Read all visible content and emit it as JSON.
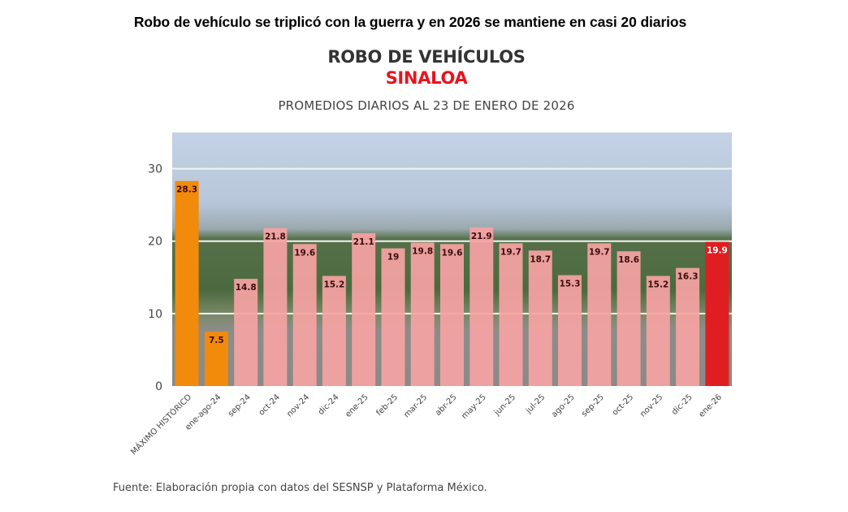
{
  "headline": "Robo de vehículo se triplicó con la guerra y en 2026 se mantiene en casi 20 diarios",
  "source": "Fuente: Elaboración propia con datos del SESNSP y Plataforma México.",
  "colors": {
    "historic": "#f28a0c",
    "monthly": "#f5a3a3",
    "current": "#e01e22",
    "title_red": "#e8141c",
    "title_gray": "#333333"
  },
  "chart_data": {
    "type": "bar",
    "title": "ROBO DE VEHÍCULOS",
    "subtitle_state": "SINALOA",
    "subtitle": "PROMEDIOS DIARIOS AL 23 DE ENERO DE 2026",
    "xlabel": "",
    "ylabel": "",
    "ylim": [
      0,
      35
    ],
    "yticks": [
      0,
      10,
      20,
      30
    ],
    "grid": true,
    "categories": [
      "MÁXIMO HISTÓRICO",
      "ene-ago-24",
      "sep-24",
      "oct-24",
      "nov-24",
      "dic-24",
      "ene-25",
      "feb-25",
      "mar-25",
      "abr-25",
      "may-25",
      "jun-25",
      "jul-25",
      "ago-25",
      "sep-25",
      "oct-25",
      "nov-25",
      "dic-25",
      "ene-26"
    ],
    "values": [
      28.3,
      7.5,
      14.8,
      21.8,
      19.6,
      15.2,
      21.1,
      19,
      19.8,
      19.6,
      21.9,
      19.7,
      18.7,
      15.3,
      19.7,
      18.6,
      15.2,
      16.3,
      19.9
    ],
    "labels": [
      "28.3",
      "7.5",
      "14.8",
      "21.8",
      "19.6",
      "15.2",
      "21.1",
      "19",
      "19.8",
      "19.6",
      "21.9",
      "19.7",
      "18.7",
      "15.3",
      "19.7",
      "18.6",
      "15.2",
      "16.3",
      "19.9"
    ],
    "bar_groups": [
      "historic",
      "historic",
      "monthly",
      "monthly",
      "monthly",
      "monthly",
      "monthly",
      "monthly",
      "monthly",
      "monthly",
      "monthly",
      "monthly",
      "monthly",
      "monthly",
      "monthly",
      "monthly",
      "monthly",
      "monthly",
      "current"
    ]
  }
}
